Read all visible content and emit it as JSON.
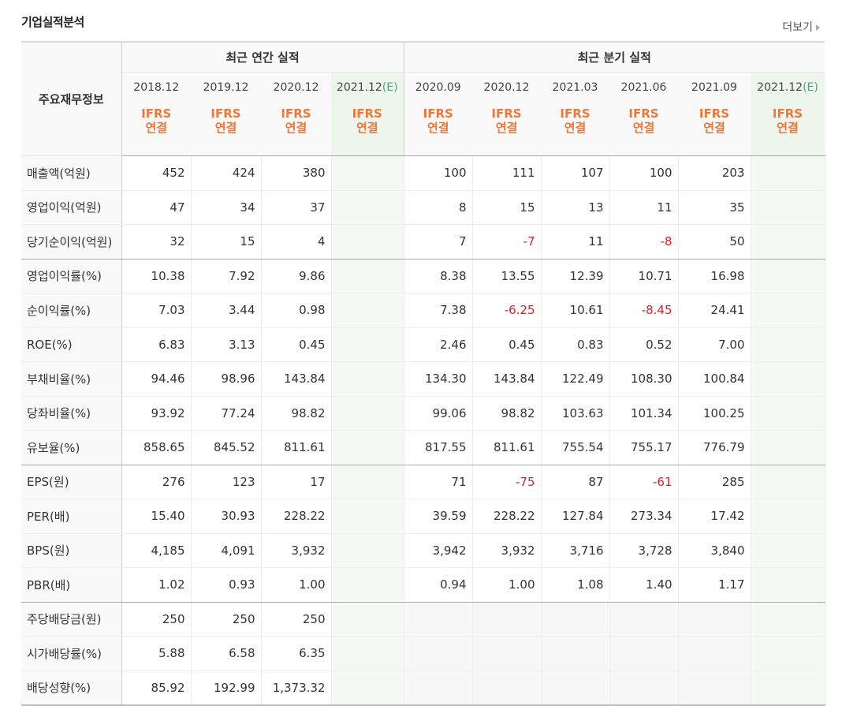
{
  "title": "기업실적분석",
  "more_label": "더보기",
  "header": {
    "side_label": "주요재무정보",
    "annual_group": "최근 연간 실적",
    "quarterly_group": "최근 분기 실적",
    "annual_periods": [
      "2018.12",
      "2019.12",
      "2020.12",
      "2021.12"
    ],
    "quarterly_periods": [
      "2020.09",
      "2020.12",
      "2021.03",
      "2021.06",
      "2021.09",
      "2021.12"
    ],
    "estimate_mark": "(E)",
    "ifrs_line1": "IFRS",
    "ifrs_line2": "연결"
  },
  "rows": [
    {
      "label": "매출액(억원)",
      "annual": [
        "452",
        "424",
        "380",
        ""
      ],
      "quarterly": [
        "100",
        "111",
        "107",
        "100",
        "203",
        ""
      ]
    },
    {
      "label": "영업이익(억원)",
      "annual": [
        "47",
        "34",
        "37",
        ""
      ],
      "quarterly": [
        "8",
        "15",
        "13",
        "11",
        "35",
        ""
      ]
    },
    {
      "label": "당기순이익(억원)",
      "annual": [
        "32",
        "15",
        "4",
        ""
      ],
      "quarterly": [
        "7",
        "-7",
        "11",
        "-8",
        "50",
        ""
      ]
    },
    {
      "label": "영업이익률(%)",
      "annual": [
        "10.38",
        "7.92",
        "9.86",
        ""
      ],
      "quarterly": [
        "8.38",
        "13.55",
        "12.39",
        "10.71",
        "16.98",
        ""
      ]
    },
    {
      "label": "순이익률(%)",
      "annual": [
        "7.03",
        "3.44",
        "0.98",
        ""
      ],
      "quarterly": [
        "7.38",
        "-6.25",
        "10.61",
        "-8.45",
        "24.41",
        ""
      ]
    },
    {
      "label": "ROE(%)",
      "annual": [
        "6.83",
        "3.13",
        "0.45",
        ""
      ],
      "quarterly": [
        "2.46",
        "0.45",
        "0.83",
        "0.52",
        "7.00",
        ""
      ]
    },
    {
      "label": "부채비율(%)",
      "annual": [
        "94.46",
        "98.96",
        "143.84",
        ""
      ],
      "quarterly": [
        "134.30",
        "143.84",
        "122.49",
        "108.30",
        "100.84",
        ""
      ]
    },
    {
      "label": "당좌비율(%)",
      "annual": [
        "93.92",
        "77.24",
        "98.82",
        ""
      ],
      "quarterly": [
        "99.06",
        "98.82",
        "103.63",
        "101.34",
        "100.25",
        ""
      ]
    },
    {
      "label": "유보율(%)",
      "annual": [
        "858.65",
        "845.52",
        "811.61",
        ""
      ],
      "quarterly": [
        "817.55",
        "811.61",
        "755.54",
        "755.17",
        "776.79",
        ""
      ]
    },
    {
      "label": "EPS(원)",
      "annual": [
        "276",
        "123",
        "17",
        ""
      ],
      "quarterly": [
        "71",
        "-75",
        "87",
        "-61",
        "285",
        ""
      ]
    },
    {
      "label": "PER(배)",
      "annual": [
        "15.40",
        "30.93",
        "228.22",
        ""
      ],
      "quarterly": [
        "39.59",
        "228.22",
        "127.84",
        "273.34",
        "17.42",
        ""
      ]
    },
    {
      "label": "BPS(원)",
      "annual": [
        "4,185",
        "4,091",
        "3,932",
        ""
      ],
      "quarterly": [
        "3,942",
        "3,932",
        "3,716",
        "3,728",
        "3,840",
        ""
      ]
    },
    {
      "label": "PBR(배)",
      "annual": [
        "1.02",
        "0.93",
        "1.00",
        ""
      ],
      "quarterly": [
        "0.94",
        "1.00",
        "1.08",
        "1.40",
        "1.17",
        ""
      ]
    },
    {
      "label": "주당배당금(원)",
      "annual": [
        "250",
        "250",
        "250",
        ""
      ],
      "quarterly": [
        "",
        "",
        "",
        "",
        "",
        ""
      ]
    },
    {
      "label": "시가배당률(%)",
      "annual": [
        "5.88",
        "6.58",
        "6.35",
        ""
      ],
      "quarterly": [
        "",
        "",
        "",
        "",
        "",
        ""
      ]
    },
    {
      "label": "배당성향(%)",
      "annual": [
        "85.92",
        "192.99",
        "1,373.32",
        ""
      ],
      "quarterly": [
        "",
        "",
        "",
        "",
        "",
        ""
      ]
    }
  ],
  "group_breaks_after": [
    2,
    8,
    12
  ],
  "colors": {
    "negative": "#e02020",
    "ifrs": "#f0773a",
    "estimate_bg": "#eef5ed",
    "estimate_mark": "#4aa87a"
  }
}
